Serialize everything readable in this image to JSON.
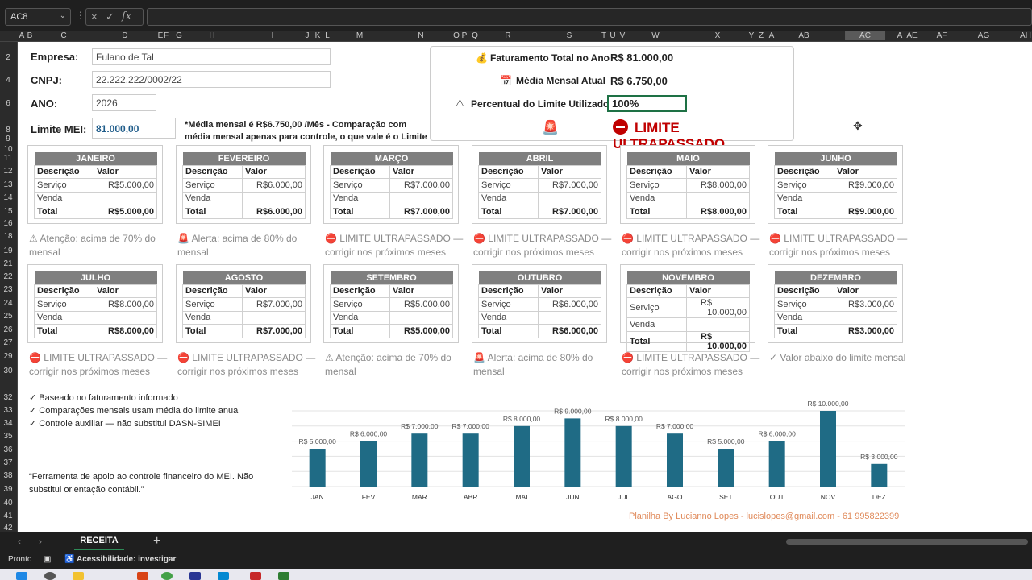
{
  "formula_bar": {
    "name_box": "AC8",
    "cancel_icon": "×",
    "enter_icon": "✓",
    "fx": "fx",
    "formula": ""
  },
  "columns": [
    "A",
    "B",
    "C",
    "D",
    "E",
    "F",
    "G",
    "H",
    "I",
    "J",
    "K",
    "L",
    "M",
    "N",
    "O",
    "P",
    "Q",
    "R",
    "S",
    "T",
    "U",
    "V",
    "W",
    "X",
    "Y",
    "Z",
    "A",
    "AB",
    "AC",
    "A",
    "AE",
    "AF",
    "AG",
    "AH"
  ],
  "rows": [
    "2",
    "4",
    "6",
    "8",
    "9",
    "10",
    "11",
    "12",
    "13",
    "14",
    "15",
    "16",
    "18",
    "19",
    "21",
    "22",
    "23",
    "24",
    "25",
    "26",
    "27",
    "29",
    "30",
    "32",
    "33",
    "34",
    "35",
    "36",
    "37",
    "38",
    "39",
    "40",
    "41",
    "42"
  ],
  "form": {
    "empresa_label": "Empresa:",
    "empresa_value": "Fulano de Tal",
    "cnpj_label": "CNPJ:",
    "cnpj_value": "22.222.222/0002/22",
    "ano_label": "ANO:",
    "ano_value": "2026",
    "limite_label": "Limite MEI:",
    "limite_value": "81.000,00",
    "note": "*Média mensal é R$6.750,00 /Mês - Comparação com média mensal apenas para controle, o que vale é o Limite Anual"
  },
  "summary": {
    "faturamento_label": "Faturamento Total no Ano",
    "faturamento_value": "R$ 81.000,00",
    "media_label": "Média Mensal Atual",
    "media_value": "R$ 6.750,00",
    "percentual_label": "Percentual do Limite Utilizado",
    "percentual_value": "100%",
    "status": "LIMITE ULTRAPASSADO"
  },
  "table_headers": {
    "descricao": "Descrição",
    "valor": "Valor",
    "servico": "Serviço",
    "venda": "Venda",
    "total": "Total",
    "currency": "R$"
  },
  "months": [
    {
      "name": "JANEIRO",
      "servico": "5.000,00",
      "total": "5.000,00",
      "msg": "⚠ Atenção: acima de 70% do mensal"
    },
    {
      "name": "FEVEREIRO",
      "servico": "6.000,00",
      "total": "6.000,00",
      "msg": "🚨 Alerta: acima de 80% do mensal"
    },
    {
      "name": "MARÇO",
      "servico": "7.000,00",
      "total": "7.000,00",
      "msg": "⛔ LIMITE ULTRAPASSADO — corrigir nos próximos meses"
    },
    {
      "name": "ABRIL",
      "servico": "7.000,00",
      "total": "7.000,00",
      "msg": "⛔ LIMITE ULTRAPASSADO — corrigir nos próximos meses"
    },
    {
      "name": "MAIO",
      "servico": "8.000,00",
      "total": "8.000,00",
      "msg": "⛔ LIMITE ULTRAPASSADO — corrigir nos próximos meses"
    },
    {
      "name": "JUNHO",
      "servico": "9.000,00",
      "total": "9.000,00",
      "msg": "⛔ LIMITE ULTRAPASSADO — corrigir nos próximos meses"
    },
    {
      "name": "JULHO",
      "servico": "8.000,00",
      "total": "8.000,00",
      "msg": "⛔ LIMITE ULTRAPASSADO — corrigir nos próximos meses"
    },
    {
      "name": "AGOSTO",
      "servico": "7.000,00",
      "total": "7.000,00",
      "msg": "⛔ LIMITE ULTRAPASSADO — corrigir nos próximos meses"
    },
    {
      "name": "SETEMBRO",
      "servico": "5.000,00",
      "total": "5.000,00",
      "msg": "⚠ Atenção: acima de 70% do mensal"
    },
    {
      "name": "OUTUBRO",
      "servico": "6.000,00",
      "total": "6.000,00",
      "msg": "🚨 Alerta: acima de 80% do mensal"
    },
    {
      "name": "NOVEMBRO",
      "servico": "10.000,00",
      "total": "10.000,00",
      "msg": "⛔ LIMITE ULTRAPASSADO — corrigir nos próximos meses"
    },
    {
      "name": "DEZEMBRO",
      "servico": "3.000,00",
      "total": "3.000,00",
      "msg": "✓ Valor abaixo do limite mensal"
    }
  ],
  "bullets": [
    "✓ Baseado no faturamento informado",
    "✓ Comparações mensais usam média do limite anual",
    "✓ Controle auxiliar — não substitui DASN-SIMEI"
  ],
  "quote": "“Ferramenta de apoio ao controle financeiro do MEI. Não substitui orientação contábil.”",
  "credit": "Planilha By Lucianno Lopes - lucislopes@gmail.com - 61 995822399",
  "chart_data": {
    "type": "bar",
    "categories": [
      "JAN",
      "FEV",
      "MAR",
      "ABR",
      "MAI",
      "JUN",
      "JUL",
      "AGO",
      "SET",
      "OUT",
      "NOV",
      "DEZ"
    ],
    "values": [
      5000,
      6000,
      7000,
      7000,
      8000,
      9000,
      8000,
      7000,
      5000,
      6000,
      10000,
      3000
    ],
    "data_labels": [
      "R$ 5.000,00",
      "R$ 6.000,00",
      "R$ 7.000,00",
      "R$ 7.000,00",
      "R$ 8.000,00",
      "R$ 9.000,00",
      "R$ 8.000,00",
      "R$ 7.000,00",
      "R$ 5.000,00",
      "R$ 6.000,00",
      "R$ 10.000,00",
      "R$ 3.000,00"
    ],
    "ylim": [
      0,
      10000
    ],
    "bar_color": "#1f6b85",
    "grid": true
  },
  "tabs": {
    "active": "RECEITA",
    "add": "+"
  },
  "status": {
    "ready": "Pronto",
    "accessibility": "Acessibilidade: investigar"
  }
}
